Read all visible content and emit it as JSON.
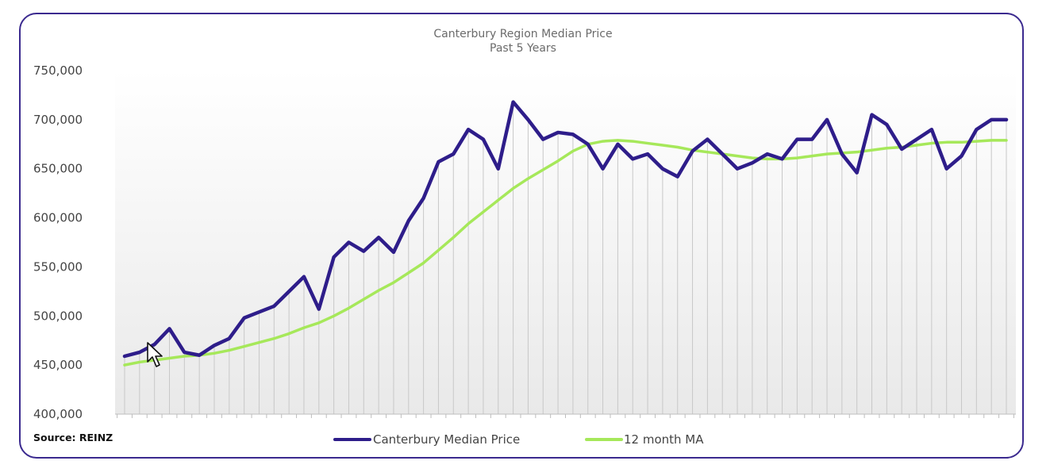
{
  "source": "Source: REINZ",
  "colors": {
    "series_main": "#2e1d8a",
    "series_ma": "#a6e85a",
    "frame": "#3b2a8f",
    "text": "#444444",
    "drop_lines": "#c8c8c8"
  },
  "chart_data": {
    "type": "line",
    "title": "Canterbury Region Median Price",
    "subtitle": "Past 5 Years",
    "xlabel": "",
    "ylabel": "",
    "ylim": [
      400000,
      750000
    ],
    "y_ticks": [
      "400,000",
      "450,000",
      "500,000",
      "550,000",
      "600,000",
      "650,000",
      "700,000",
      "750,000"
    ],
    "y_tick_values": [
      400000,
      450000,
      500000,
      550000,
      600000,
      650000,
      700000,
      750000
    ],
    "grid": false,
    "drop_lines": true,
    "legend": "bottom",
    "x": [
      1,
      2,
      3,
      4,
      5,
      6,
      7,
      8,
      9,
      10,
      11,
      12,
      13,
      14,
      15,
      16,
      17,
      18,
      19,
      20,
      21,
      22,
      23,
      24,
      25,
      26,
      27,
      28,
      29,
      30,
      31,
      32,
      33,
      34,
      35,
      36,
      37,
      38,
      39,
      40,
      41,
      42,
      43,
      44,
      45,
      46,
      47,
      48,
      49,
      50,
      51,
      52,
      53,
      54,
      55,
      56,
      57,
      58,
      59,
      60
    ],
    "series": [
      {
        "name": "Canterbury Median Price",
        "values": [
          459000,
          463000,
          471000,
          487000,
          463000,
          460000,
          470000,
          477000,
          498000,
          504000,
          510000,
          525000,
          540000,
          507000,
          560000,
          575000,
          566000,
          580000,
          565000,
          597000,
          620000,
          657000,
          665000,
          690000,
          680000,
          650000,
          718000,
          700000,
          680000,
          687000,
          685000,
          675000,
          650000,
          675000,
          660000,
          665000,
          650000,
          642000,
          668000,
          680000,
          665000,
          650000,
          656000,
          665000,
          660000,
          680000,
          680000,
          700000,
          665000,
          646000,
          705000,
          695000,
          670000,
          680000,
          690000,
          650000,
          663000,
          690000,
          700000,
          700000
        ]
      },
      {
        "name": "12 month MA",
        "values": [
          450000,
          453000,
          455000,
          457000,
          459000,
          460000,
          462000,
          465000,
          469000,
          473000,
          477000,
          482000,
          488000,
          493000,
          500000,
          508000,
          517000,
          526000,
          534000,
          544000,
          554000,
          567000,
          580000,
          594000,
          606000,
          618000,
          630000,
          640000,
          649000,
          658000,
          668000,
          675000,
          678000,
          679000,
          678000,
          676000,
          674000,
          672000,
          669000,
          667000,
          665000,
          663000,
          661000,
          660000,
          660000,
          661000,
          663000,
          665000,
          666000,
          667000,
          669000,
          671000,
          672000,
          674000,
          676000,
          677000,
          677000,
          678000,
          679000,
          679000
        ]
      }
    ]
  }
}
